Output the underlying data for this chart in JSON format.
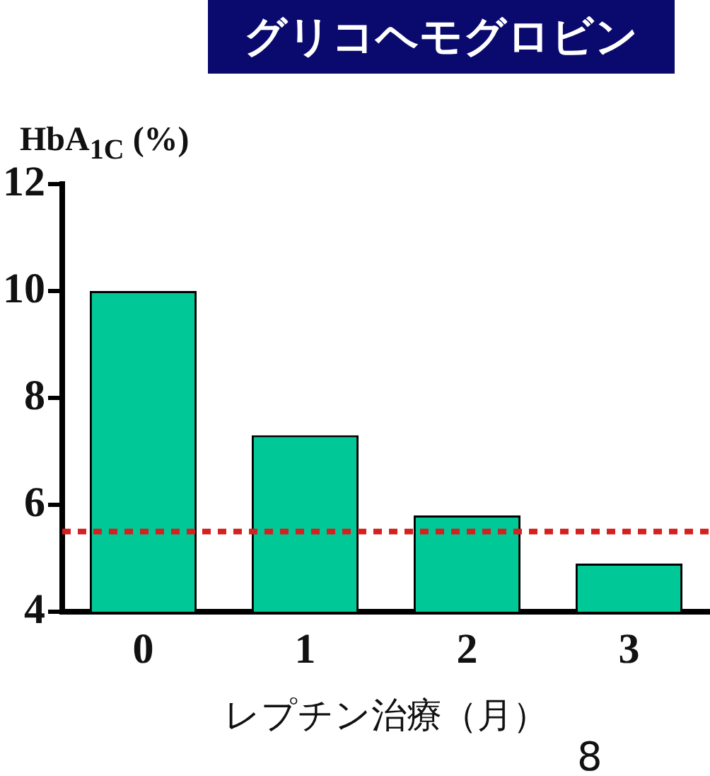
{
  "chart_data": {
    "type": "bar",
    "title": "グリコヘモグロビン",
    "ylabel": "HbA$_{1C}$ (%)",
    "xlabel": "レプチン治療（月）",
    "categories": [
      "0",
      "1",
      "2",
      "3"
    ],
    "values": [
      10,
      7.3,
      5.8,
      4.9
    ],
    "color": "#00c896",
    "ylim": [
      4,
      12
    ],
    "yticks": [
      4,
      6,
      8,
      10,
      12
    ],
    "grid": false,
    "legend": false,
    "ref_lines": [
      {
        "axis": "y",
        "value": 5.5,
        "color": "#d42020",
        "line_style": "dotted"
      }
    ],
    "annotations": [
      "8"
    ]
  }
}
